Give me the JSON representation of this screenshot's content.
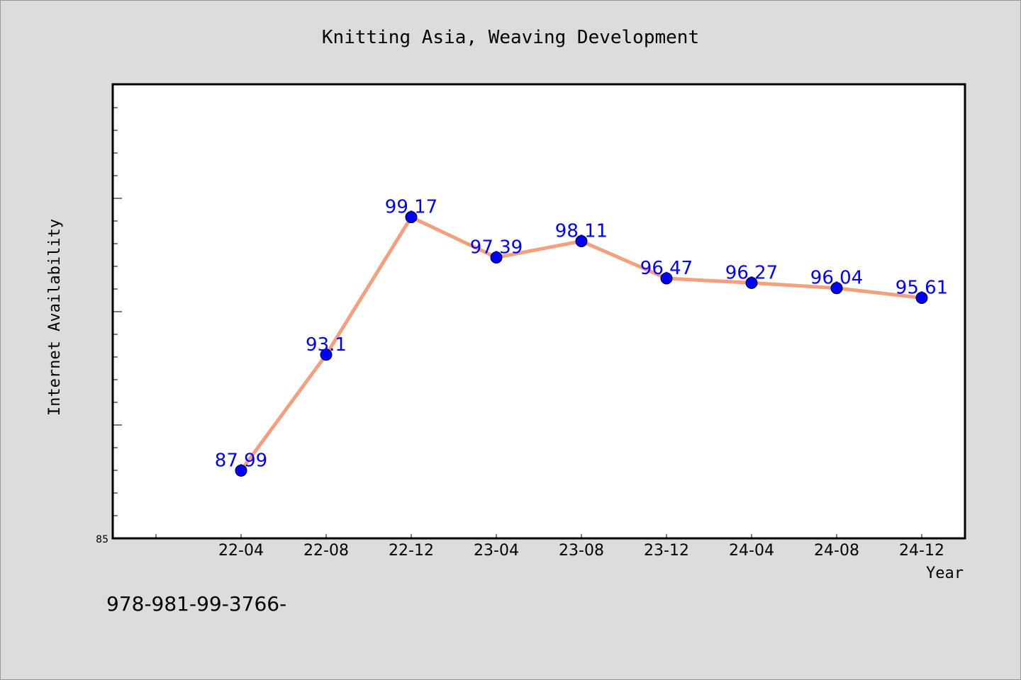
{
  "chart_data": {
    "type": "line",
    "title": "Knitting Asia, Weaving Development",
    "xlabel": "Year",
    "ylabel": "Internet Availability",
    "categories": [
      "22-04",
      "22-08",
      "22-12",
      "23-04",
      "23-08",
      "23-12",
      "24-04",
      "24-08",
      "24-12"
    ],
    "values": [
      87.99,
      93.1,
      99.17,
      97.39,
      98.11,
      96.47,
      96.27,
      96.04,
      95.61
    ],
    "data_labels": [
      "87.99",
      "93.1",
      "99.17",
      "97.39",
      "98.11",
      "96.47",
      "96.27",
      "96.04",
      "95.61"
    ],
    "y_tick_labels": [
      "85"
    ],
    "ylim": [
      85,
      105
    ],
    "grid": false,
    "legend": "none",
    "line_color": "#f4a07e",
    "marker_color": "#0000ff",
    "label_color": "#0000ff"
  },
  "footnote": "978-981-99-3766-"
}
